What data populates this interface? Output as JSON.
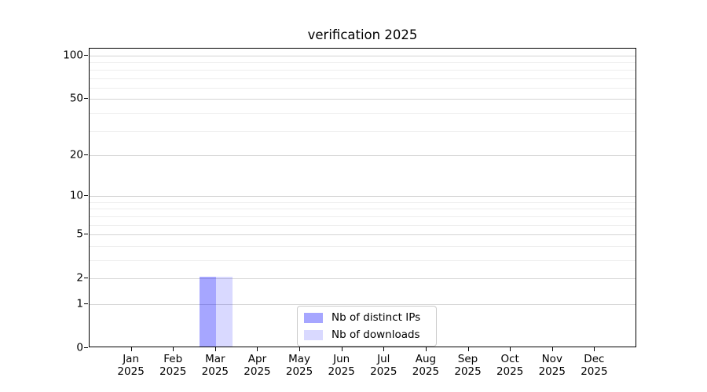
{
  "chart_data": {
    "type": "bar",
    "title": "verification 2025",
    "categories": [
      "Jan",
      "Feb",
      "Mar",
      "Apr",
      "May",
      "Jun",
      "Jul",
      "Aug",
      "Sep",
      "Oct",
      "Nov",
      "Dec"
    ],
    "category_year": "2025",
    "series": [
      {
        "name": "Nb of distinct IPs",
        "fill": "#0000ff",
        "fill_alpha": 0.35,
        "values": [
          0,
          0,
          2,
          0,
          0,
          0,
          0,
          0,
          0,
          0,
          0,
          0
        ]
      },
      {
        "name": "Nb of downloads",
        "fill": "#0000ff",
        "fill_alpha": 0.15,
        "values": [
          0,
          0,
          2,
          0,
          0,
          0,
          0,
          0,
          0,
          0,
          0,
          0
        ]
      }
    ],
    "xlabel": "",
    "ylabel": "",
    "y_scale": "log1p",
    "y_major_ticks": [
      0,
      1,
      2,
      5,
      10,
      20,
      50,
      100
    ],
    "y_minor_gridlines": [
      3,
      4,
      6,
      7,
      8,
      9,
      30,
      40,
      60,
      70,
      80,
      90
    ],
    "ylim": [
      0,
      112
    ],
    "grid": true,
    "legend_position": "lower center"
  },
  "colors": {
    "background": "#ffffff",
    "axis": "#000000",
    "major_grid": "#d4d4d4",
    "minor_grid": "#ededed",
    "legend_border": "#cccccc",
    "text": "#000000"
  }
}
